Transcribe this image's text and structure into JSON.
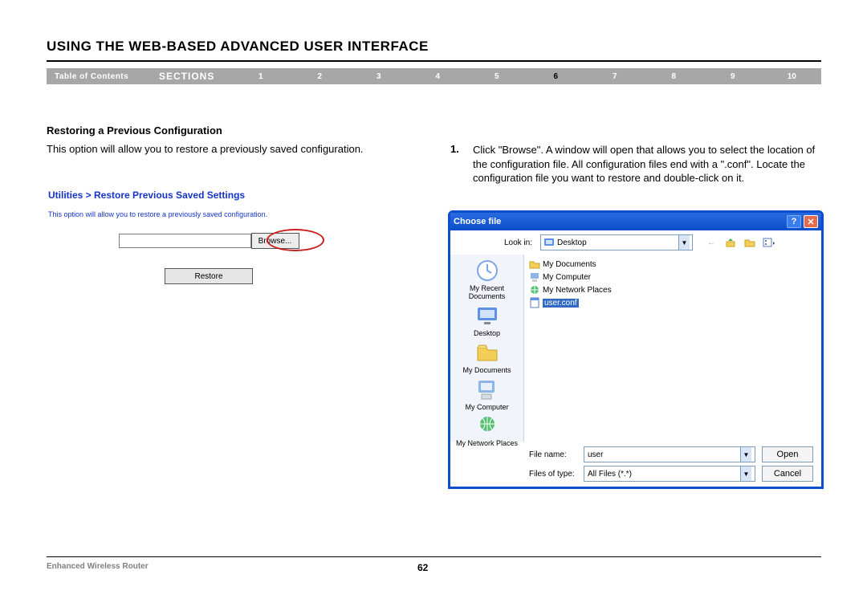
{
  "header": {
    "title": "USING THE WEB-BASED ADVANCED USER INTERFACE",
    "toc_label": "Table of Contents",
    "sections_label": "SECTIONS",
    "section_numbers": [
      "1",
      "2",
      "3",
      "4",
      "5",
      "6",
      "7",
      "8",
      "9",
      "10"
    ],
    "active_section": "6",
    "colors": {
      "bar_bg": "#a7a7a7",
      "bar_text": "#ffffff",
      "active_text": "#000000"
    }
  },
  "content": {
    "subtitle": "Restoring a Previous Configuration",
    "intro": "This option will allow you to restore a previously saved configuration.",
    "step_num": "1.",
    "step_text": "Click \"Browse\". A window will open that allows you to select the location of the configuration file. All configuration files end with a \".conf\". Locate the configuration file you want to restore and double-click on it."
  },
  "router_panel": {
    "breadcrumb": "Utilities > Restore Previous Saved Settings",
    "desc": "This option will allow you to restore a previously saved configuration.",
    "browse_label": "Browse...",
    "restore_label": "Restore",
    "highlight_color": "#c82020",
    "link_color": "#1433c7"
  },
  "dialog": {
    "title": "Choose file",
    "lookin_label": "Look in:",
    "lookin_value": "Desktop",
    "titlebar_gradient": [
      "#2a6ae0",
      "#0a4ecb"
    ],
    "places": [
      {
        "label": "My Recent Documents",
        "icon_color": "#7da7e8"
      },
      {
        "label": "Desktop",
        "icon_color": "#5b91e6"
      },
      {
        "label": "My Documents",
        "icon_color": "#f3cf57"
      },
      {
        "label": "My Computer",
        "icon_color": "#8db5e8"
      },
      {
        "label": "My Network Places",
        "icon_color": "#56c271"
      }
    ],
    "files": [
      {
        "name": "My Documents",
        "type": "folder"
      },
      {
        "name": "My Computer",
        "type": "computer"
      },
      {
        "name": "My Network Places",
        "type": "network"
      },
      {
        "name": "user.conf",
        "type": "file",
        "selected": true
      }
    ],
    "filename_label": "File name:",
    "filename_value": "user",
    "filetype_label": "Files of type:",
    "filetype_value": "All Files (*.*)",
    "open_label": "Open",
    "cancel_label": "Cancel"
  },
  "footer": {
    "product": "Enhanced Wireless Router",
    "page": "62"
  }
}
